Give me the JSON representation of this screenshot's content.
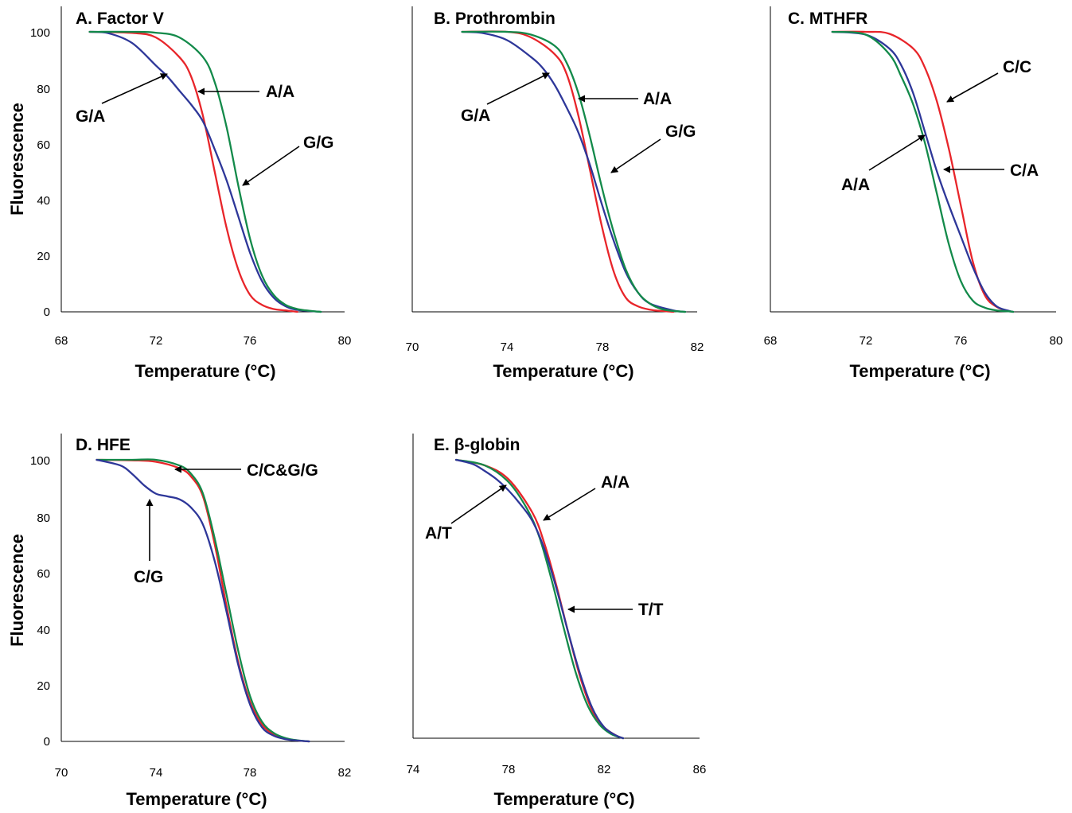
{
  "figure": {
    "ylabel": "Fluorescence",
    "xlabel": "Temperature (°C)"
  },
  "colors": {
    "red": "#e8252a",
    "green": "#138a4a",
    "blue": "#2e3799"
  },
  "chart_data": [
    {
      "type": "line",
      "title": "A. Factor V",
      "xlabel": "Temperature (°C)",
      "ylabel": "Fluorescence",
      "xlim": [
        68,
        80
      ],
      "ylim": [
        0,
        100
      ],
      "xticks": [
        "68",
        "72",
        "76",
        "80"
      ],
      "yticks": [
        "0",
        "20",
        "40",
        "60",
        "80",
        "100"
      ],
      "series": [
        {
          "color": "#e8252a",
          "x": [
            69.2,
            71,
            72,
            73,
            73.5,
            74,
            74.5,
            75,
            75.5,
            76,
            76.5,
            77,
            77.5,
            78
          ],
          "y": [
            100,
            99.6,
            98,
            91,
            84,
            70,
            50,
            30,
            15,
            6,
            2.5,
            1,
            0.5,
            0
          ]
        },
        {
          "color": "#2e3799",
          "x": [
            69.2,
            70,
            71,
            72,
            72.5,
            73,
            73.5,
            74,
            74.5,
            75,
            75.5,
            76,
            76.5,
            77,
            77.5,
            78,
            79
          ],
          "y": [
            100,
            99.5,
            96,
            88,
            84,
            79,
            74,
            68,
            58,
            47,
            34,
            21,
            11,
            5,
            2,
            0.7,
            0
          ]
        },
        {
          "color": "#138a4a",
          "x": [
            69.2,
            71,
            72,
            73,
            74,
            74.5,
            75,
            75.5,
            76,
            76.5,
            77,
            77.5,
            78,
            78.5,
            79
          ],
          "y": [
            100,
            100,
            99.7,
            98,
            91,
            82,
            66,
            45,
            26,
            13,
            6,
            2.5,
            1,
            0.4,
            0
          ]
        }
      ],
      "annotations": [
        {
          "text": "G/A",
          "x": 72.4,
          "y": 85.5
        },
        {
          "text": "A/A",
          "x": 73.8,
          "y": 78.5
        },
        {
          "text": "G/G",
          "x": 75.7,
          "y": 44.5
        }
      ]
    },
    {
      "type": "line",
      "title": "B. Prothrombin",
      "xlabel": "Temperature (°C)",
      "ylabel": "",
      "xlim": [
        70,
        82
      ],
      "ylim": [
        0,
        100
      ],
      "xticks": [
        "70",
        "74",
        "78",
        "82"
      ],
      "yticks": [],
      "series": [
        {
          "color": "#e8252a",
          "x": [
            72.1,
            74,
            75,
            76,
            76.5,
            77,
            77.5,
            78,
            78.5,
            79,
            79.5,
            80,
            80.5,
            81
          ],
          "y": [
            100,
            100,
            98,
            92,
            85,
            70,
            50,
            30,
            14,
            5,
            2,
            0.8,
            0.3,
            0
          ]
        },
        {
          "color": "#2e3799",
          "x": [
            72.1,
            73,
            74,
            75,
            75.5,
            76,
            76.5,
            77,
            77.5,
            78,
            78.5,
            79,
            79.5,
            80,
            81,
            81.5
          ],
          "y": [
            100,
            99.5,
            97,
            91,
            87,
            81,
            73,
            64,
            52,
            38,
            25,
            14,
            7,
            3,
            0.5,
            0
          ]
        },
        {
          "color": "#138a4a",
          "x": [
            72.1,
            74,
            75,
            76,
            76.5,
            77,
            77.5,
            78,
            78.5,
            79,
            79.5,
            80,
            80.5,
            81,
            81.5
          ],
          "y": [
            100,
            100,
            99,
            95,
            89,
            78,
            62,
            44,
            28,
            15,
            7,
            3,
            1,
            0.3,
            0
          ]
        }
      ],
      "annotations": [
        {
          "text": "G/A",
          "x": 75.8,
          "y": 86
        },
        {
          "text": "A/A",
          "x": 77.3,
          "y": 76.5
        },
        {
          "text": "G/G",
          "x": 78.2,
          "y": 48.5
        }
      ]
    },
    {
      "type": "line",
      "title": "C. MTHFR",
      "xlabel": "Temperature (°C)",
      "ylabel": "",
      "xlim": [
        68,
        80
      ],
      "ylim": [
        0,
        100
      ],
      "xticks": [
        "68",
        "72",
        "76",
        "80"
      ],
      "yticks": [],
      "series": [
        {
          "color": "#e8252a",
          "x": [
            70.6,
            72,
            73,
            74,
            74.5,
            75,
            75.5,
            76,
            76.5,
            77,
            77.5,
            78,
            78.2
          ],
          "y": [
            100,
            100,
            99.3,
            94,
            87,
            75,
            58,
            38,
            18,
            6,
            1.8,
            0.3,
            0
          ]
        },
        {
          "color": "#2e3799",
          "x": [
            70.6,
            72,
            73,
            73.5,
            74,
            74.5,
            75,
            75.5,
            76,
            76.5,
            77,
            77.5,
            78,
            78.2
          ],
          "y": [
            100,
            99,
            94,
            88,
            78,
            64,
            50,
            38,
            27,
            16,
            7,
            2,
            0.4,
            0
          ]
        },
        {
          "color": "#138a4a",
          "x": [
            70.6,
            72,
            73,
            73.5,
            74,
            74.5,
            75,
            75.5,
            76,
            76.5,
            77,
            77.5,
            78,
            78.2
          ],
          "y": [
            100,
            99,
            92,
            84,
            74,
            60,
            42,
            24,
            11,
            4,
            1.5,
            0.5,
            0.2,
            0
          ]
        }
      ],
      "annotations": [
        {
          "text": "C/C",
          "x": 75.5,
          "y": 74
        },
        {
          "text": "A/A",
          "x": 74.6,
          "y": 63.5
        },
        {
          "text": "C/A",
          "x": 75.3,
          "y": 51
        }
      ]
    },
    {
      "type": "line",
      "title": "D. HFE",
      "xlabel": "Temperature (°C)",
      "ylabel": "Fluorescence",
      "xlim": [
        70,
        82
      ],
      "ylim": [
        0,
        100
      ],
      "xticks": [
        "70",
        "74",
        "78",
        "82"
      ],
      "yticks": [
        "0",
        "20",
        "40",
        "60",
        "80",
        "100"
      ],
      "series": [
        {
          "color": "#e8252a",
          "x": [
            71.5,
            73,
            74,
            75,
            75.5,
            76,
            76.5,
            77,
            77.5,
            78,
            78.5,
            79,
            79.5,
            80,
            80.5
          ],
          "y": [
            100,
            99.8,
            99.3,
            97,
            94,
            87,
            70,
            48,
            28,
            14,
            6,
            2.5,
            1,
            0.3,
            0
          ]
        },
        {
          "color": "#138a4a",
          "x": [
            71.5,
            73,
            74,
            75,
            75.5,
            76,
            76.5,
            77,
            77.5,
            78,
            78.5,
            79,
            79.5,
            80,
            80.5
          ],
          "y": [
            100,
            100,
            100,
            98,
            95,
            88,
            72,
            52,
            32,
            16,
            7,
            3,
            1.2,
            0.4,
            0
          ]
        },
        {
          "color": "#2e3799",
          "x": [
            71.5,
            72.5,
            73,
            73.5,
            74,
            74.5,
            75,
            75.5,
            76,
            76.5,
            77,
            77.5,
            78,
            78.5,
            79,
            79.5,
            80,
            80.5
          ],
          "y": [
            100,
            98,
            95,
            91,
            88,
            87,
            86,
            83,
            77,
            64,
            46,
            27,
            13,
            5,
            2,
            0.8,
            0.3,
            0
          ]
        }
      ],
      "annotations": [
        {
          "text": "C/C&G/G",
          "x": 75.3,
          "y": 97
        },
        {
          "text": "C/G",
          "x": 74.2,
          "y": 87
        }
      ]
    },
    {
      "type": "line",
      "title": "E. β-globin",
      "xlabel": "Temperature (°C)",
      "ylabel": "",
      "xlim": [
        74,
        86
      ],
      "ylim": [
        0,
        100
      ],
      "xticks": [
        "74",
        "78",
        "82",
        "86"
      ],
      "yticks": [],
      "series": [
        {
          "color": "#e8252a",
          "x": [
            75.8,
            77,
            78,
            79,
            79.5,
            80,
            80.5,
            81,
            81.5,
            82,
            82.5,
            82.8
          ],
          "y": [
            100,
            98,
            93,
            81,
            70,
            55,
            38,
            22,
            10,
            4,
            1,
            0
          ]
        },
        {
          "color": "#138a4a",
          "x": [
            75.8,
            77,
            78,
            78.8,
            79.3,
            79.8,
            80.3,
            80.8,
            81.3,
            81.8,
            82.3,
            82.8
          ],
          "y": [
            100,
            98,
            92,
            82,
            72,
            57,
            40,
            24,
            12,
            5,
            1.5,
            0
          ]
        },
        {
          "color": "#2e3799",
          "x": [
            75.8,
            76.5,
            77,
            77.5,
            78,
            78.5,
            79,
            79.5,
            80,
            80.5,
            81,
            81.5,
            82,
            82.5,
            82.8
          ],
          "y": [
            100,
            98.5,
            96,
            93,
            89,
            84,
            78,
            68,
            54,
            38,
            23,
            11,
            4,
            1,
            0
          ]
        }
      ],
      "annotations": [
        {
          "text": "A/T",
          "x": 77.8,
          "y": 92
        },
        {
          "text": "A/A",
          "x": 79.4,
          "y": 79
        },
        {
          "text": "T/T",
          "x": 80.4,
          "y": 47.5
        }
      ]
    }
  ]
}
